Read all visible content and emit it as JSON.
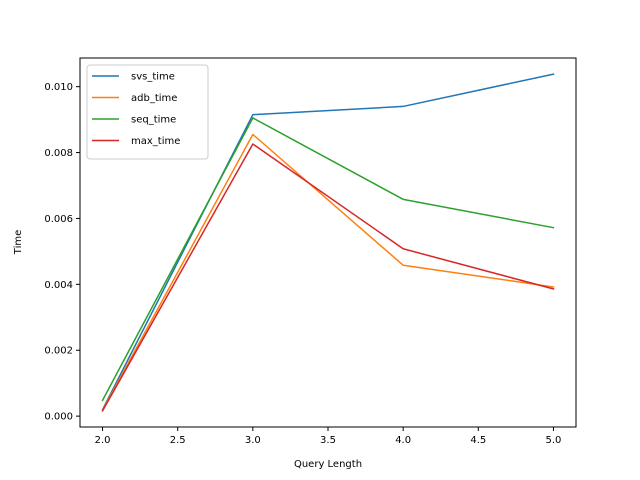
{
  "chart_data": {
    "type": "line",
    "xlabel": "Query Length",
    "ylabel": "Time",
    "xlim": [
      1.85,
      5.15
    ],
    "ylim": [
      -0.00033,
      0.01087
    ],
    "xticks": [
      2.0,
      2.5,
      3.0,
      3.5,
      4.0,
      4.5,
      5.0
    ],
    "xtick_labels": [
      "2.0",
      "2.5",
      "3.0",
      "3.5",
      "4.0",
      "4.5",
      "5.0"
    ],
    "yticks": [
      0.0,
      0.002,
      0.004,
      0.006,
      0.008,
      0.01
    ],
    "ytick_labels": [
      "0.000",
      "0.002",
      "0.004",
      "0.006",
      "0.008",
      "0.010"
    ],
    "legend_position": "top-left",
    "grid": false,
    "x": [
      2,
      3,
      4,
      5
    ],
    "series": [
      {
        "name": "svs_time",
        "color": "#1f77b4",
        "values": [
          0.0002,
          0.00915,
          0.0094,
          0.01038
        ]
      },
      {
        "name": "adb_time",
        "color": "#ff7f0e",
        "values": [
          0.00018,
          0.00855,
          0.00458,
          0.00392
        ]
      },
      {
        "name": "seq_time",
        "color": "#2ca02c",
        "values": [
          0.00048,
          0.00905,
          0.00658,
          0.00572
        ]
      },
      {
        "name": "max_time",
        "color": "#d62728",
        "values": [
          0.00016,
          0.00826,
          0.00508,
          0.00386
        ]
      }
    ]
  }
}
